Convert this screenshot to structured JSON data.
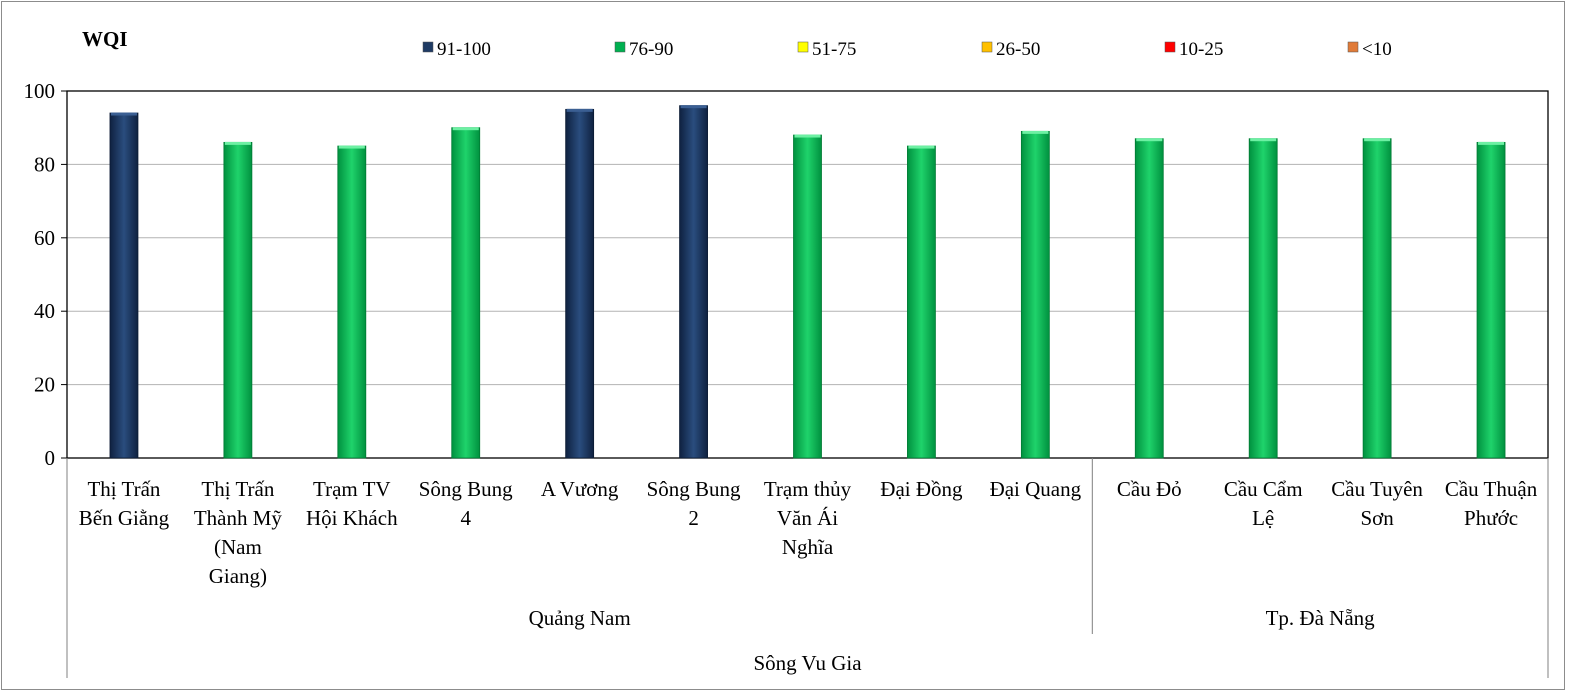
{
  "chart_data": {
    "type": "bar",
    "title": "WQI",
    "ylim": [
      0,
      100
    ],
    "yticks": [
      0,
      20,
      40,
      60,
      80,
      100
    ],
    "grid": true,
    "legend_position": "top",
    "legend": [
      {
        "label": "91-100",
        "color": "#1f3b64"
      },
      {
        "label": "76-90",
        "color": "#00b050"
      },
      {
        "label": "51-75",
        "color": "#ffff00"
      },
      {
        "label": "26-50",
        "color": "#ffc000"
      },
      {
        "label": "10-25",
        "color": "#ff0000"
      },
      {
        "label": "<10",
        "color": "#e07b39"
      }
    ],
    "categories": [
      [
        "Thị Trấn",
        "Bến Giằng"
      ],
      [
        "Thị Trấn",
        "Thành Mỹ",
        "(Nam",
        "Giang)"
      ],
      [
        "Trạm TV",
        "Hội Khách"
      ],
      [
        "Sông Bung",
        "4"
      ],
      [
        "A Vương"
      ],
      [
        "Sông Bung",
        "2"
      ],
      [
        "Trạm thủy",
        "Văn Ái",
        "Nghĩa"
      ],
      [
        "Đại Đồng"
      ],
      [
        "Đại Quang"
      ],
      [
        "Cầu Đỏ"
      ],
      [
        "Cầu Cẩm",
        "Lệ"
      ],
      [
        "Cầu Tuyên",
        "Sơn"
      ],
      [
        "Cầu Thuận",
        "Phước"
      ]
    ],
    "values": [
      94,
      86,
      85,
      90,
      95,
      96,
      88,
      85,
      89,
      87,
      87,
      87,
      86
    ],
    "groups": [
      {
        "label": "Quảng Nam",
        "start": 0,
        "end": 8
      },
      {
        "label": "Tp. Đà Nẵng",
        "start": 9,
        "end": 12
      }
    ],
    "super_group": {
      "label": "Sông Vu Gia",
      "start": 0,
      "end": 12
    }
  }
}
